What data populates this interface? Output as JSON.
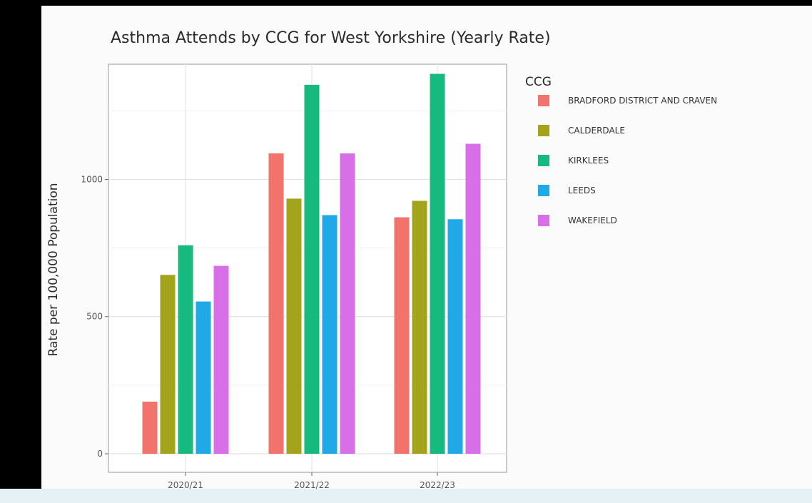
{
  "chart_data": {
    "type": "bar",
    "title": "Asthma Attends by CCG for West Yorkshire (Yearly Rate)",
    "xlabel": "",
    "ylabel": "Rate per 100,000 Population",
    "categories": [
      "2020/21",
      "2021/22",
      "2022/23"
    ],
    "yticks": [
      "0",
      "500",
      "1000"
    ],
    "ylim": [
      0,
      1420
    ],
    "grid": true,
    "legend_title": "CCG",
    "legend_position": "right",
    "series": [
      {
        "name": "BRADFORD DISTRICT AND CRAVEN",
        "color": "#f2736b",
        "values": [
          190,
          1095,
          862
        ]
      },
      {
        "name": "CALDERDALE",
        "color": "#a3a31c",
        "values": [
          652,
          930,
          922
        ]
      },
      {
        "name": "KIRKLEES",
        "color": "#16b97e",
        "values": [
          760,
          1345,
          1385
        ]
      },
      {
        "name": "LEEDS",
        "color": "#1fa9e6",
        "values": [
          555,
          870,
          855
        ]
      },
      {
        "name": "WAKEFIELD",
        "color": "#d86ee8",
        "values": [
          685,
          1095,
          1130
        ]
      }
    ]
  }
}
